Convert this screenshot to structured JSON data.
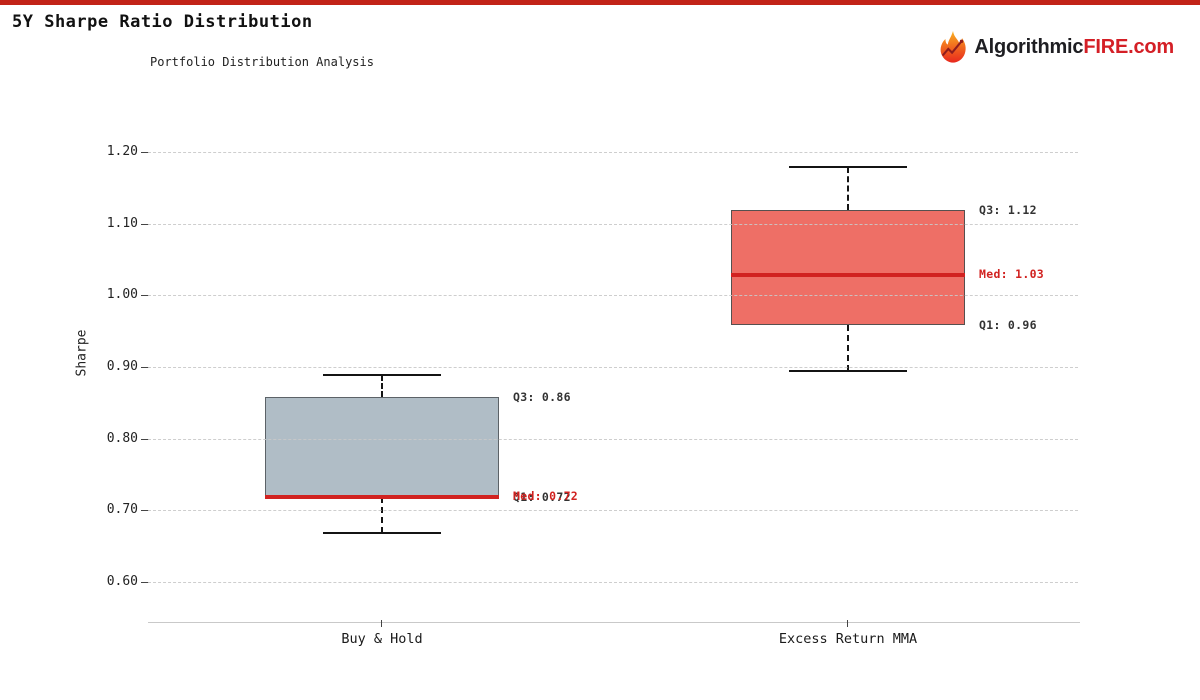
{
  "page": {
    "top_bar_color": "#c22318"
  },
  "header": {
    "logo": {
      "icon": "flame-chart-icon",
      "part1": "Algorithmic",
      "part2": "FIRE",
      "part3": ".com"
    }
  },
  "chart_data": {
    "type": "boxplot",
    "title": "5Y Sharpe Ratio Distribution",
    "subtitle": "Portfolio Distribution Analysis",
    "ylabel": "Sharpe",
    "yticks": [
      0.6,
      0.7,
      0.8,
      0.9,
      1.0,
      1.1,
      1.2
    ],
    "ylim": [
      0.55,
      1.25
    ],
    "grid": true,
    "categories": [
      "Buy & Hold",
      "Excess Return MMA"
    ],
    "series": [
      {
        "name": "Buy & Hold",
        "whisker_low": 0.67,
        "q1": 0.72,
        "median": 0.72,
        "q3": 0.86,
        "whisker_high": 0.89,
        "box_fill": "#b0bdc6",
        "box_border": "#5c6267",
        "labels": {
          "q3": "Q3: 0.86",
          "med": "Med: 0.72",
          "q1": "Q1: 0.72"
        }
      },
      {
        "name": "Excess Return MMA",
        "whisker_low": 0.895,
        "q1": 0.96,
        "median": 1.03,
        "q3": 1.12,
        "whisker_high": 1.18,
        "box_fill": "#ee6f66",
        "box_border": "#56504f",
        "labels": {
          "q3": "Q3: 1.12",
          "med": "Med: 1.03",
          "q1": "Q1: 0.96"
        }
      }
    ],
    "colors": {
      "median_line": "#d12220",
      "annotation": "#333333",
      "annotation_med": "#d12220",
      "grid": "#c9c9c9",
      "whisker": "#141414"
    }
  }
}
